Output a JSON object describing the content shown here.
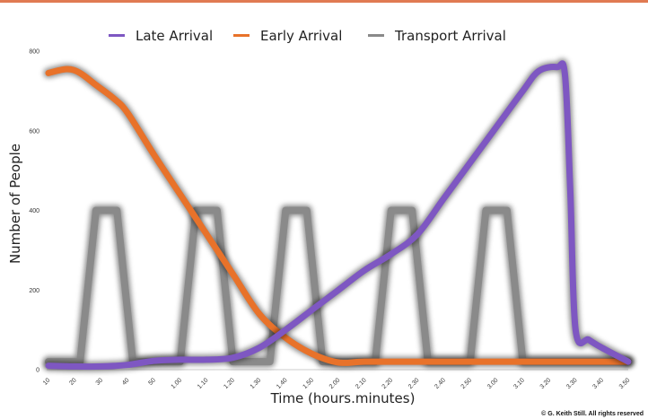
{
  "chart_data": {
    "type": "line",
    "title": "",
    "xlabel": "Time (hours.minutes)",
    "ylabel": "Number of People",
    "ylim": [
      0,
      800
    ],
    "yticks": [
      "0",
      "200",
      "400",
      "600",
      "800"
    ],
    "xlim": [
      10,
      230
    ],
    "x_ticks": [
      {
        "label": "10",
        "minutes": 10
      },
      {
        "label": "20",
        "minutes": 20
      },
      {
        "label": "30",
        "minutes": 30
      },
      {
        "label": "40",
        "minutes": 40
      },
      {
        "label": "50",
        "minutes": 50
      },
      {
        "label": "1.00",
        "minutes": 60
      },
      {
        "label": "1.10",
        "minutes": 70
      },
      {
        "label": "1.20",
        "minutes": 80
      },
      {
        "label": "1.30",
        "minutes": 90
      },
      {
        "label": "1.40",
        "minutes": 100
      },
      {
        "label": "1.50",
        "minutes": 110
      },
      {
        "label": "2.00",
        "minutes": 120
      },
      {
        "label": "2.10",
        "minutes": 130
      },
      {
        "label": "2.20",
        "minutes": 140
      },
      {
        "label": "2.30",
        "minutes": 150
      },
      {
        "label": "2.40",
        "minutes": 160
      },
      {
        "label": "2.50",
        "minutes": 170
      },
      {
        "label": "3.00",
        "minutes": 180
      },
      {
        "label": "3.10",
        "minutes": 190
      },
      {
        "label": "3.20",
        "minutes": 200
      },
      {
        "label": "3.30",
        "minutes": 210
      },
      {
        "label": "3.40",
        "minutes": 220
      },
      {
        "label": "3.50",
        "minutes": 230
      }
    ],
    "grid": false,
    "legend_position": "top-center",
    "series": [
      {
        "name": "Late Arrival",
        "color": "#7e57c2",
        "points": [
          [
            10,
            10
          ],
          [
            20,
            8
          ],
          [
            30,
            8
          ],
          [
            40,
            12
          ],
          [
            50,
            22
          ],
          [
            60,
            25
          ],
          [
            70,
            25
          ],
          [
            80,
            30
          ],
          [
            90,
            55
          ],
          [
            100,
            100
          ],
          [
            110,
            150
          ],
          [
            120,
            200
          ],
          [
            130,
            250
          ],
          [
            140,
            290
          ],
          [
            150,
            340
          ],
          [
            160,
            430
          ],
          [
            170,
            520
          ],
          [
            180,
            610
          ],
          [
            190,
            700
          ],
          [
            196,
            750
          ],
          [
            203,
            760
          ],
          [
            206,
            740
          ],
          [
            208,
            450
          ],
          [
            210,
            100
          ],
          [
            215,
            75
          ],
          [
            220,
            55
          ],
          [
            230,
            20
          ]
        ]
      },
      {
        "name": "Early Arrival",
        "color": "#e8722a",
        "points": [
          [
            10,
            745
          ],
          [
            17,
            755
          ],
          [
            22,
            745
          ],
          [
            28,
            715
          ],
          [
            35,
            680
          ],
          [
            40,
            645
          ],
          [
            50,
            540
          ],
          [
            60,
            440
          ],
          [
            70,
            340
          ],
          [
            80,
            240
          ],
          [
            90,
            140
          ],
          [
            100,
            80
          ],
          [
            110,
            40
          ],
          [
            120,
            18
          ],
          [
            130,
            20
          ],
          [
            150,
            20
          ],
          [
            170,
            20
          ],
          [
            190,
            20
          ],
          [
            210,
            20
          ],
          [
            230,
            20
          ]
        ]
      },
      {
        "name": "Transport Arrival",
        "color": "#8a8a8a",
        "points": [
          [
            10,
            20
          ],
          [
            22,
            20
          ],
          [
            28,
            400
          ],
          [
            36,
            400
          ],
          [
            42,
            20
          ],
          [
            60,
            20
          ],
          [
            66,
            400
          ],
          [
            74,
            400
          ],
          [
            80,
            20
          ],
          [
            94,
            20
          ],
          [
            100,
            400
          ],
          [
            108,
            400
          ],
          [
            114,
            20
          ],
          [
            134,
            20
          ],
          [
            140,
            400
          ],
          [
            148,
            400
          ],
          [
            154,
            20
          ],
          [
            170,
            20
          ],
          [
            176,
            400
          ],
          [
            184,
            400
          ],
          [
            190,
            20
          ],
          [
            230,
            20
          ]
        ]
      }
    ]
  },
  "copyright": "© G. Keith Still. All rights reserved",
  "colors": {
    "top_rule": "#e07a52"
  }
}
